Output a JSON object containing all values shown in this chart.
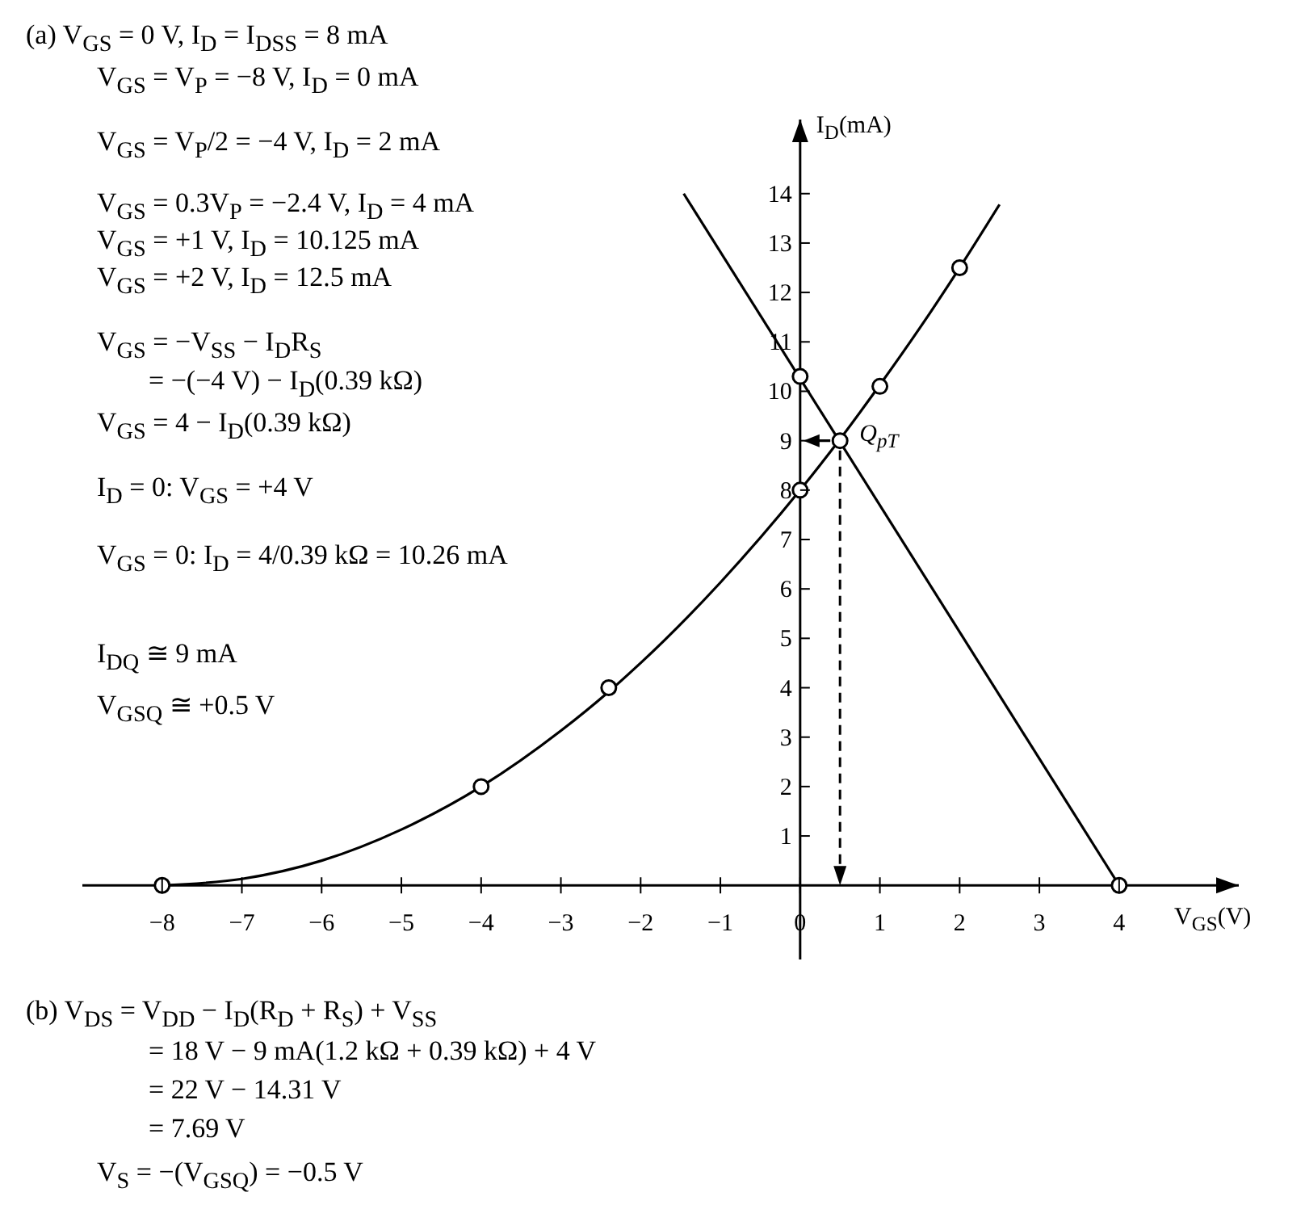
{
  "chart_data": {
    "type": "line",
    "xlabel": "V$_{GS}$(V)",
    "ylabel": "I$_{D}$(mA)",
    "xlim": [
      -9,
      5.5
    ],
    "ylim": [
      -1.5,
      15.5
    ],
    "xticks": [
      -8,
      -7,
      -6,
      -5,
      -4,
      -3,
      -2,
      -1,
      0,
      1,
      2,
      3,
      4
    ],
    "yticks": [
      1,
      2,
      3,
      4,
      5,
      6,
      7,
      8,
      9,
      10,
      11,
      12,
      13,
      14
    ],
    "series": [
      {
        "marker": "none",
        "color": "#000000",
        "x": [
          -8,
          -7,
          -6,
          -5,
          -4,
          -3,
          -2.4,
          -2,
          -1,
          0,
          0.5,
          1,
          1.5,
          2,
          2.5
        ],
        "values": [
          0,
          0.13,
          0.5,
          1.13,
          2,
          3.13,
          3.92,
          4.5,
          6.13,
          8,
          9.03,
          10.13,
          11.28,
          12.5,
          13.78
        ]
      },
      {
        "marker": "none",
        "color": "#000000",
        "x": [
          -1.46,
          4
        ],
        "values": [
          14,
          0
        ]
      },
      {
        "type": "scatter",
        "marker": "circle",
        "color": "#000000",
        "x": [
          -8,
          -4,
          -2.4,
          0,
          1,
          2,
          0,
          4,
          0.5
        ],
        "values": [
          0,
          2,
          4,
          8,
          10.1,
          12.5,
          10.3,
          0,
          9
        ]
      }
    ],
    "annotations": [
      "(a) V$_{GS}$ = 0 V, I$_{D}$ = I$_{DSS}$ = 8 mA",
      "V$_{GS}$ = V$_{P}$ = −8 V, I$_{D}$ = 0 mA",
      "V$_{GS}$ = V$_{P}$/2 = −4 V, I$_{D}$ = 2 mA",
      "V$_{GS}$ = 0.3V$_{P}$ = −2.4 V, I$_{D}$ = 4 mA",
      "V$_{GS}$ = +1 V, I$_{D}$ = 10.125 mA",
      "V$_{GS}$ = +2 V, I$_{D}$ = 12.5 mA",
      "V$_{GS}$ = −V$_{SS}$ − I$_{D}$R$_{S}$",
      "= −(−4 V) − I$_{D}$(0.39 kΩ)",
      "V$_{GS}$ = 4 − I$_{D}$(0.39 kΩ)",
      "I$_{D}$ = 0:  V$_{GS}$ = +4 V",
      "V$_{GS}$ = 0:  I$_{D}$ = 4/0.39 kΩ = 10.26 mA",
      "I$_{DQ}$ ≅ 9 mA",
      "V$_{GSQ}$ ≅ +0.5 V",
      "(b) V$_{DS}$ = V$_{DD}$ − I$_{D}$(R$_{D}$ + R$_{S}$) + V$_{SS}$",
      "= 18 V − 9 mA(1.2 kΩ + 0.39 kΩ) + 4 V",
      "= 22 V − 14.31 V",
      "= 7.69 V",
      "V$_{S}$ = −(V$_{GSQ}$) = −0.5 V",
      {
        "text": "Q$_{pT}$",
        "x": 0.5,
        "y": 9
      }
    ]
  }
}
